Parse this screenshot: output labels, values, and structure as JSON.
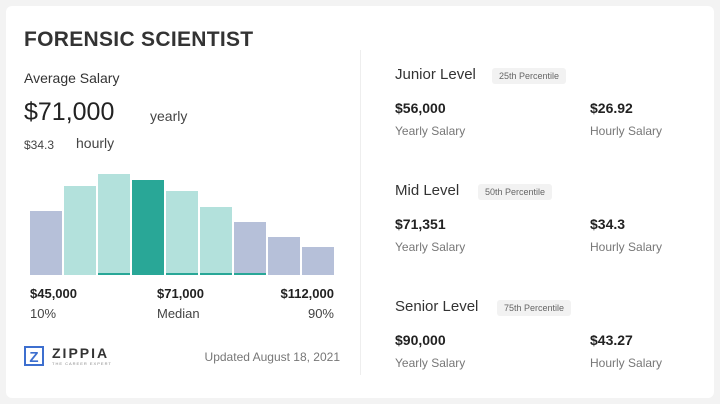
{
  "title": "FORENSIC SCIENTIST",
  "average": {
    "label": "Average Salary",
    "yearly_value": "$71,000",
    "yearly_label": "yearly",
    "hourly_value": "$34.3",
    "hourly_label": "hourly"
  },
  "chart_data": {
    "type": "bar",
    "relative_heights": [
      64,
      89,
      99,
      95,
      82,
      66,
      51,
      38,
      28
    ],
    "highlight_index": 3,
    "colors": {
      "outer": "#b6c0d9",
      "inner": "#b3e1dc",
      "median": "#29a797"
    },
    "labels": [
      {
        "value": "$45,000",
        "caption": "10%"
      },
      {
        "value": "$71,000",
        "caption": "Median"
      },
      {
        "value": "$112,000",
        "caption": "90%"
      }
    ]
  },
  "logo": {
    "name": "ZIPPIA",
    "tagline": "THE CAREER EXPERT"
  },
  "updated": "Updated August 18, 2021",
  "levels": [
    {
      "name": "Junior Level",
      "percentile": "25th Percentile",
      "yearly": "$56,000",
      "yearly_label": "Yearly Salary",
      "hourly": "$26.92",
      "hourly_label": "Hourly Salary"
    },
    {
      "name": "Mid Level",
      "percentile": "50th Percentile",
      "yearly": "$71,351",
      "yearly_label": "Yearly Salary",
      "hourly": "$34.3",
      "hourly_label": "Hourly Salary"
    },
    {
      "name": "Senior Level",
      "percentile": "75th Percentile",
      "yearly": "$90,000",
      "yearly_label": "Yearly Salary",
      "hourly": "$43.27",
      "hourly_label": "Hourly Salary"
    }
  ]
}
